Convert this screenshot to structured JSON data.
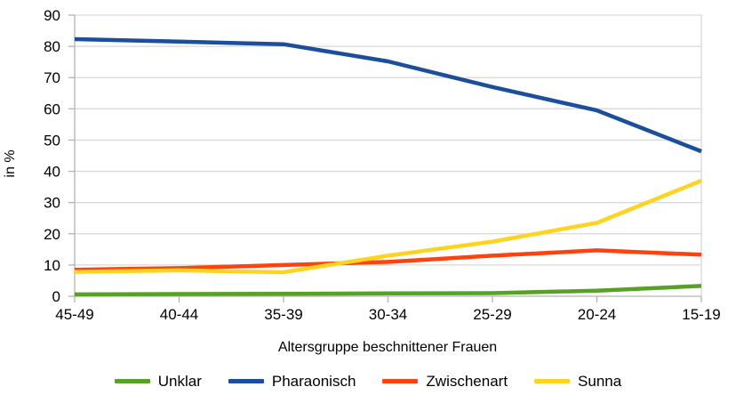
{
  "chart_data": {
    "type": "line",
    "title": "",
    "xlabel": "Altersgruppe beschnittener Frauen",
    "ylabel": "in %",
    "ylim": [
      0,
      90
    ],
    "yticks": [
      0,
      10,
      20,
      30,
      40,
      50,
      60,
      70,
      80,
      90
    ],
    "grid": true,
    "legend_position": "bottom",
    "categories": [
      "45-49",
      "40-44",
      "35-39",
      "30-34",
      "25-29",
      "20-24",
      "15-19"
    ],
    "series": [
      {
        "name": "Unklar",
        "color": "#57a126",
        "values": [
          0.6,
          0.7,
          0.8,
          0.9,
          1.0,
          1.8,
          3.3
        ]
      },
      {
        "name": "Pharaonisch",
        "color": "#1b4e9b",
        "values": [
          82.3,
          81.5,
          80.7,
          75.2,
          67.0,
          59.5,
          46.4
        ]
      },
      {
        "name": "Zwischenart",
        "color": "#ff420e",
        "values": [
          8.5,
          9.0,
          10.0,
          11.0,
          13.0,
          14.7,
          13.3
        ]
      },
      {
        "name": "Sunna",
        "color": "#ffd320",
        "values": [
          7.8,
          8.3,
          7.7,
          13.0,
          17.5,
          23.5,
          37.0
        ]
      }
    ]
  },
  "colors": {
    "background": "#ffffff",
    "grid": "#d9d9d9",
    "axis": "#b3b3b3",
    "text": "#000000"
  }
}
